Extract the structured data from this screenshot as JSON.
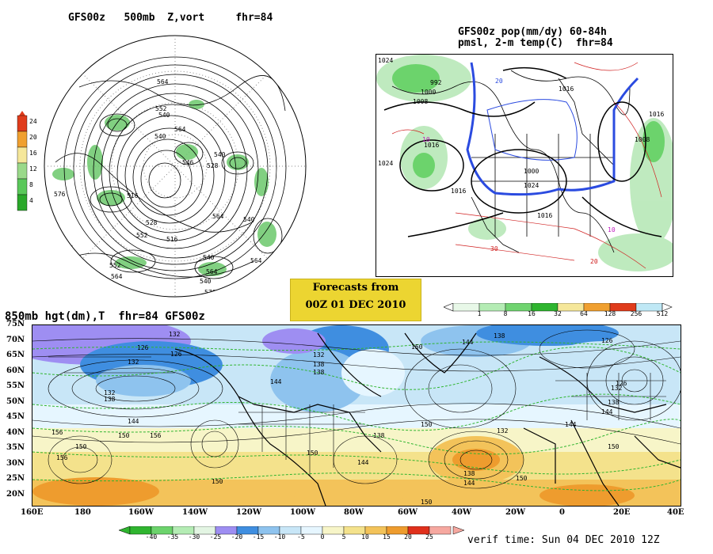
{
  "panels": {
    "top_left": {
      "title": "GFS00z   500mb  Z,vort     fhr=84",
      "contour_labels": [
        "564",
        "552",
        "540",
        "540",
        "546",
        "528",
        "540",
        "576",
        "516",
        "528",
        "564",
        "540",
        "552",
        "516",
        "540",
        "564",
        "576",
        "552",
        "564",
        "540",
        "576",
        "564",
        "576",
        "564"
      ],
      "colorbar": {
        "labels": [
          "24",
          "20",
          "16",
          "12",
          "8",
          "4"
        ],
        "colors": [
          "#e03c1c",
          "#f0a030",
          "#f5e79a",
          "#9ad98a",
          "#5ac85a",
          "#2aa82a"
        ]
      }
    },
    "top_right": {
      "title_line1": "GFS00z pop(mm/dy) 60-84h",
      "title_line2": "pmsl, 2-m temp(C)  fhr=84",
      "contour_labels": [
        "1024",
        "992",
        "1000",
        "1008",
        "1024",
        "1016",
        "1016",
        "1000",
        "1016",
        "1024",
        "1016",
        "1008",
        "1016",
        "10",
        "20",
        "30",
        "10",
        "20"
      ],
      "colorbar": {
        "labels": [
          "1",
          "8",
          "16",
          "32",
          "64",
          "128",
          "256",
          "512"
        ],
        "colors": [
          "#e8f8e8",
          "#b4ecb4",
          "#70d470",
          "#2fb52f",
          "#f5e79a",
          "#f0a030",
          "#e03c1c",
          "#bfe8f5"
        ]
      }
    },
    "forecast_box": {
      "line1": "Forecasts from",
      "line2": "00Z 01 DEC 2010"
    },
    "bottom": {
      "title": "850mb hgt(dm),T  fhr=84 GFS00z",
      "y_labels": [
        "75N",
        "70N",
        "65N",
        "60N",
        "55N",
        "50N",
        "45N",
        "40N",
        "35N",
        "30N",
        "25N",
        "20N"
      ],
      "x_labels": [
        "160E",
        "180",
        "160W",
        "140W",
        "120W",
        "100W",
        "80W",
        "60W",
        "40W",
        "20W",
        "0",
        "20E",
        "40E"
      ],
      "contour_labels": [
        "132",
        "126",
        "126",
        "132",
        "138",
        "138",
        "132",
        "144",
        "150",
        "144",
        "138",
        "126",
        "132",
        "126",
        "132",
        "138",
        "156",
        "150",
        "156",
        "150",
        "144",
        "150",
        "138",
        "144",
        "138",
        "150",
        "144",
        "132",
        "138",
        "144",
        "150",
        "150",
        "156",
        "150",
        "150",
        "144"
      ],
      "colorbar": {
        "labels": [
          "-40",
          "-35",
          "-30",
          "-25",
          "-20",
          "-15",
          "-10",
          "-5",
          "0",
          "5",
          "10",
          "15",
          "20",
          "25"
        ],
        "colors": [
          "#2fb52f",
          "#6cd36c",
          "#b4ecb4",
          "#e3f5e3",
          "#9e8ef2",
          "#3f8ee0",
          "#8ec3ee",
          "#c8e6f7",
          "#e6f6ff",
          "#f7f5c8",
          "#f4e28c",
          "#f3c35a",
          "#ee9c2e",
          "#e0301c",
          "#f6a8a0"
        ]
      },
      "verif_time": "verif time: Sun 04 DEC 2010 12Z"
    }
  }
}
